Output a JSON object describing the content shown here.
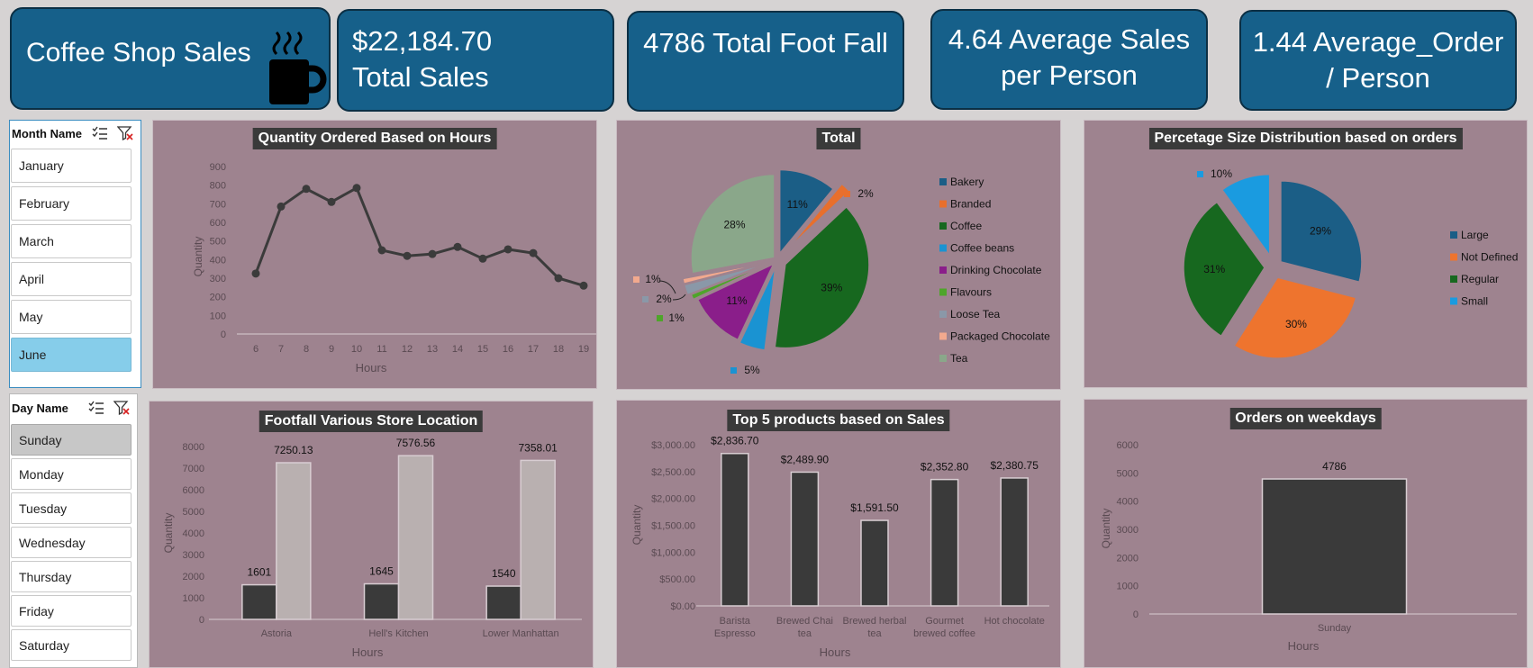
{
  "kpis": {
    "title": "Coffee Shop Sales",
    "total_sales_value": "$22,184.70",
    "total_sales_label": "Total Sales",
    "footfall": "4786 Total Foot Fall",
    "avg_sales_line1": "4.64 Average Sales",
    "avg_sales_line2": "per Person",
    "avg_order_line1": "1.44  Average_Order",
    "avg_order_line2": "/  Person"
  },
  "slicers": {
    "month": {
      "header": "Month Name",
      "items": [
        "January",
        "February",
        "March",
        "April",
        "May",
        "June"
      ],
      "selected": "June"
    },
    "day": {
      "header": "Day Name",
      "items": [
        "Sunday",
        "Monday",
        "Tuesday",
        "Wednesday",
        "Thursday",
        "Friday",
        "Saturday"
      ],
      "selected": "Sunday"
    }
  },
  "colors": {
    "kpi_bg": "#16608a",
    "panel_bg": "#9e838f",
    "dark_bar": "#3a3a3a",
    "light_bar": "#b9b0b0"
  },
  "chart_data": [
    {
      "type": "line",
      "title": "Quantity Ordered Based on Hours",
      "xlabel": "Hours",
      "ylabel": "Quantity",
      "x": [
        6,
        7,
        8,
        9,
        10,
        11,
        12,
        13,
        14,
        15,
        16,
        17,
        18,
        19
      ],
      "values": [
        325,
        685,
        780,
        710,
        785,
        450,
        420,
        430,
        468,
        405,
        455,
        435,
        300,
        260
      ],
      "ylim": [
        0,
        900
      ],
      "yticks": [
        "0",
        "100",
        "200",
        "300",
        "400",
        "500",
        "600",
        "700",
        "800",
        "900"
      ]
    },
    {
      "type": "pie",
      "title": "Total",
      "categories": [
        "Bakery",
        "Branded",
        "Coffee",
        "Coffee beans",
        "Drinking Chocolate",
        "Flavours",
        "Loose Tea",
        "Packaged Chocolate",
        "Tea"
      ],
      "values": [
        11,
        2,
        39,
        5,
        11,
        1,
        2,
        1,
        28
      ],
      "labels": [
        "11%",
        "2%",
        "39%",
        "5%",
        "11%",
        "1%",
        "2%",
        "1%",
        "28%"
      ],
      "colors": [
        "#1b5e86",
        "#e86f2c",
        "#17681f",
        "#1a93d2",
        "#8a1e8a",
        "#4ea52a",
        "#8a98a8",
        "#f2a98e",
        "#8aa78a"
      ],
      "legend": "right"
    },
    {
      "type": "pie",
      "title": "Percetage Size Distribution based on orders",
      "categories": [
        "Large",
        "Not Defined",
        "Regular",
        "Small"
      ],
      "values": [
        29,
        30,
        31,
        10
      ],
      "labels": [
        "29%",
        "30%",
        "31%",
        "10%"
      ],
      "colors": [
        "#1b5e86",
        "#ee742e",
        "#17681f",
        "#1a9be0"
      ],
      "legend": "right"
    },
    {
      "type": "bar",
      "title": "Footfall Various Store Location",
      "xlabel": "Hours",
      "ylabel": "Quantity",
      "categories": [
        "Astoria",
        "Hell's Kitchen",
        "Lower Manhattan"
      ],
      "series": [
        {
          "values": [
            1601,
            1645,
            1540
          ],
          "labels": [
            "1601",
            "1645",
            "1540"
          ]
        },
        {
          "values": [
            7250.13,
            7576.56,
            7358.01
          ],
          "labels": [
            "7250.13",
            "7576.56",
            "7358.01"
          ]
        }
      ],
      "ylim": [
        0,
        8000
      ],
      "yticks": [
        "0",
        "1000",
        "2000",
        "3000",
        "4000",
        "5000",
        "6000",
        "7000",
        "8000"
      ]
    },
    {
      "type": "bar",
      "title": "Top 5 products based on Sales",
      "xlabel": "Hours",
      "ylabel": "Quantity",
      "categories": [
        [
          "Barista",
          "Espresso"
        ],
        [
          "Brewed Chai",
          "tea"
        ],
        [
          "Brewed herbal",
          "tea"
        ],
        [
          "Gourmet",
          "brewed coffee"
        ],
        [
          "Hot chocolate"
        ]
      ],
      "values": [
        2836.7,
        2489.9,
        1591.5,
        2352.8,
        2380.75
      ],
      "labels": [
        "$2,836.70",
        "$2,489.90",
        "$1,591.50",
        "$2,352.80",
        "$2,380.75"
      ],
      "ylim": [
        0,
        3000
      ],
      "yticks": [
        "$0.00",
        "$500.00",
        "$1,000.00",
        "$1,500.00",
        "$2,000.00",
        "$2,500.00",
        "$3,000.00"
      ]
    },
    {
      "type": "bar",
      "title": "Orders on weekdays",
      "xlabel": "Hours",
      "ylabel": "Quantity",
      "categories": [
        "Sunday"
      ],
      "values": [
        4786
      ],
      "labels": [
        "4786"
      ],
      "ylim": [
        0,
        6000
      ],
      "yticks": [
        "0",
        "1000",
        "2000",
        "3000",
        "4000",
        "5000",
        "6000"
      ]
    }
  ]
}
